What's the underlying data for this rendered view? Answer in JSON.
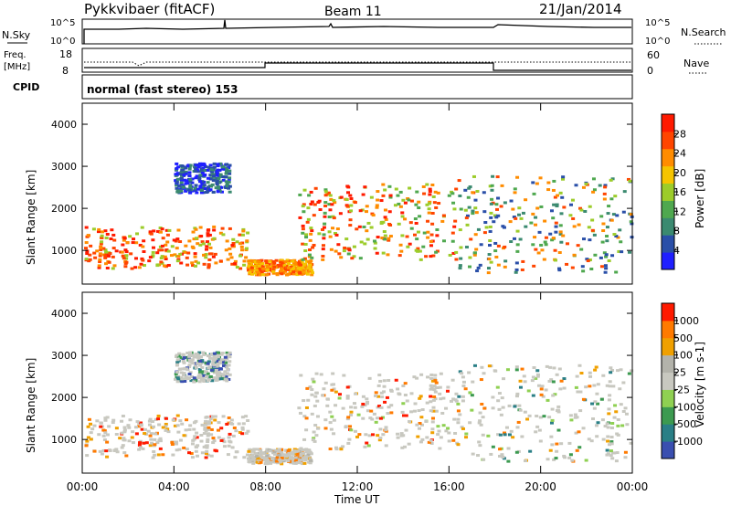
{
  "header": {
    "station": "Pykkvibaer (fitACF)",
    "beam": "Beam 11",
    "date": "21/Jan/2014"
  },
  "nsky_panel": {
    "left_label": "N.Sky",
    "right_label": "N.Search",
    "ticks_left": [
      "10^5",
      "10^0"
    ],
    "ticks_right": [
      "10^5",
      "10^0"
    ]
  },
  "freq_panel": {
    "left_label_line1": "Freq.",
    "left_label_line2": "[MHz]",
    "ticks_left": [
      "18",
      "8"
    ],
    "ticks_right": [
      "60",
      "0"
    ],
    "right_label": "Nave"
  },
  "cpid_panel": {
    "label": "CPID",
    "text": "normal (fast stereo) 153"
  },
  "colors": {
    "power_scale": [
      "#1f1fff",
      "#2a4fa8",
      "#3b8a70",
      "#4fa84f",
      "#9ccc2a",
      "#f5c400",
      "#ff8c00",
      "#ff4500",
      "#ff1a00"
    ],
    "velocity_scale": [
      "#3a4fb0",
      "#2a7f86",
      "#3c9a50",
      "#8fd052",
      "#c8c8c0",
      "#b3b3ab",
      "#f0a000",
      "#ff7a00",
      "#ff1a00"
    ]
  },
  "chart_data": [
    {
      "type": "heatmap",
      "panel": "power",
      "ylabel": "Slant Range [km]",
      "xlabel": "Time UT",
      "x_ticks": [
        "00:00",
        "04:00",
        "08:00",
        "12:00",
        "16:00",
        "20:00",
        "00:00"
      ],
      "y_ticks": [
        1000,
        2000,
        3000,
        4000
      ],
      "ylim": [
        200,
        4500
      ],
      "colorbar_label": "Power [dB]",
      "colorbar_ticks": [
        4,
        8,
        12,
        16,
        20,
        24,
        28
      ]
    },
    {
      "type": "heatmap",
      "panel": "velocity",
      "ylabel": "Slant Range [km]",
      "xlabel": "Time UT",
      "x_ticks": [
        "00:00",
        "04:00",
        "08:00",
        "12:00",
        "16:00",
        "20:00",
        "00:00"
      ],
      "y_ticks": [
        1000,
        2000,
        3000,
        4000
      ],
      "ylim": [
        200,
        4500
      ],
      "colorbar_label": "Velocity [m s-1]",
      "colorbar_ticks": [
        1000,
        500,
        100,
        25,
        -25,
        -100,
        -500,
        -1000
      ]
    }
  ]
}
